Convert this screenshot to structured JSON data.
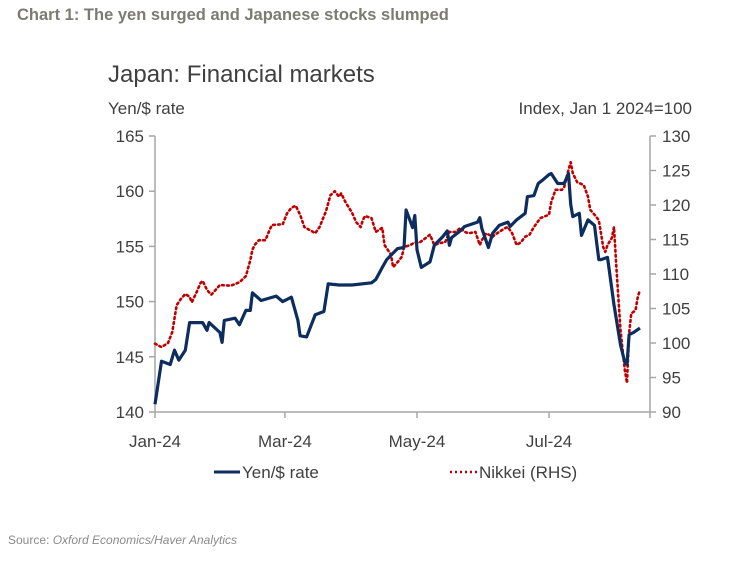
{
  "header": {
    "title": "Chart 1: The yen surged and Japanese stocks slumped"
  },
  "source": {
    "label": "Source:",
    "text": "Oxford Economics/Haver Analytics"
  },
  "chart_data": {
    "type": "line",
    "title": "Japan: Financial markets",
    "ylabel": "Yen/$ rate",
    "y2label": "Index, Jan 1 2024=100",
    "xlim": [
      "2024-01-01",
      "2024-08-31"
    ],
    "ylim": [
      140,
      165
    ],
    "y2lim": [
      90,
      130
    ],
    "x_ticks": [
      "Jan-24",
      "Mar-24",
      "May-24",
      "Jul-24"
    ],
    "x_tick_dates": [
      "2024-01-01",
      "2024-03-01",
      "2024-05-01",
      "2024-07-01"
    ],
    "y_ticks": [
      140,
      145,
      150,
      155,
      160,
      165
    ],
    "y2_ticks": [
      90,
      95,
      100,
      105,
      110,
      115,
      120,
      125,
      130
    ],
    "grid": false,
    "legend": "bottom",
    "series": [
      {
        "name": "Yen/$ rate",
        "axis": "left",
        "color": "#0d2d5e",
        "style": "solid",
        "points": [
          [
            "2024-01-01",
            140.7
          ],
          [
            "2024-01-04",
            144.6
          ],
          [
            "2024-01-08",
            144.3
          ],
          [
            "2024-01-10",
            145.6
          ],
          [
            "2024-01-12",
            144.7
          ],
          [
            "2024-01-15",
            145.6
          ],
          [
            "2024-01-17",
            148.1
          ],
          [
            "2024-01-23",
            148.1
          ],
          [
            "2024-01-25",
            147.4
          ],
          [
            "2024-01-26",
            148.1
          ],
          [
            "2024-01-31",
            147.2
          ],
          [
            "2024-02-01",
            146.3
          ],
          [
            "2024-02-02",
            148.3
          ],
          [
            "2024-02-07",
            148.5
          ],
          [
            "2024-02-09",
            147.9
          ],
          [
            "2024-02-12",
            149.2
          ],
          [
            "2024-02-14",
            149.2
          ],
          [
            "2024-02-15",
            150.8
          ],
          [
            "2024-02-19",
            150.1
          ],
          [
            "2024-02-26",
            150.5
          ],
          [
            "2024-02-29",
            150.0
          ],
          [
            "2024-03-04",
            150.4
          ],
          [
            "2024-03-07",
            148.3
          ],
          [
            "2024-03-08",
            146.9
          ],
          [
            "2024-03-11",
            146.8
          ],
          [
            "2024-03-13",
            147.8
          ],
          [
            "2024-03-15",
            148.8
          ],
          [
            "2024-03-19",
            149.1
          ],
          [
            "2024-03-21",
            151.6
          ],
          [
            "2024-03-26",
            151.5
          ],
          [
            "2024-04-01",
            151.5
          ],
          [
            "2024-04-10",
            151.7
          ],
          [
            "2024-04-12",
            152.0
          ],
          [
            "2024-04-15",
            153.1
          ],
          [
            "2024-04-17",
            153.8
          ],
          [
            "2024-04-22",
            154.8
          ],
          [
            "2024-04-25",
            154.9
          ],
          [
            "2024-04-26",
            158.3
          ],
          [
            "2024-04-29",
            156.7
          ],
          [
            "2024-04-30",
            157.8
          ],
          [
            "2024-05-01",
            154.7
          ],
          [
            "2024-05-03",
            153.1
          ],
          [
            "2024-05-07",
            153.6
          ],
          [
            "2024-05-09",
            155.1
          ],
          [
            "2024-05-13",
            155.9
          ],
          [
            "2024-05-15",
            156.4
          ],
          [
            "2024-05-16",
            155.1
          ],
          [
            "2024-05-17",
            155.8
          ],
          [
            "2024-05-21",
            156.4
          ],
          [
            "2024-05-23",
            156.8
          ],
          [
            "2024-05-29",
            157.2
          ],
          [
            "2024-05-30",
            157.6
          ],
          [
            "2024-05-31",
            156.6
          ],
          [
            "2024-06-03",
            154.9
          ],
          [
            "2024-06-05",
            156.2
          ],
          [
            "2024-06-08",
            156.9
          ],
          [
            "2024-06-12",
            157.2
          ],
          [
            "2024-06-13",
            156.8
          ],
          [
            "2024-06-16",
            157.4
          ],
          [
            "2024-06-20",
            158.0
          ],
          [
            "2024-06-21",
            159.5
          ],
          [
            "2024-06-24",
            159.6
          ],
          [
            "2024-06-26",
            160.7
          ],
          [
            "2024-06-28",
            161.0
          ],
          [
            "2024-07-01",
            161.5
          ],
          [
            "2024-07-02",
            161.6
          ],
          [
            "2024-07-05",
            160.7
          ],
          [
            "2024-07-08",
            160.7
          ],
          [
            "2024-07-10",
            161.6
          ],
          [
            "2024-07-11",
            158.8
          ],
          [
            "2024-07-12",
            157.7
          ],
          [
            "2024-07-15",
            158.0
          ],
          [
            "2024-07-16",
            156.0
          ],
          [
            "2024-07-19",
            157.4
          ],
          [
            "2024-07-22",
            156.9
          ],
          [
            "2024-07-24",
            153.8
          ],
          [
            "2024-07-25",
            153.8
          ],
          [
            "2024-07-28",
            154.0
          ],
          [
            "2024-07-31",
            149.7
          ],
          [
            "2024-08-03",
            146.1
          ],
          [
            "2024-08-05",
            144.5
          ],
          [
            "2024-08-06",
            144.3
          ],
          [
            "2024-08-07",
            147.0
          ],
          [
            "2024-08-09",
            147.2
          ],
          [
            "2024-08-12",
            147.6
          ]
        ]
      },
      {
        "name": "Nikkei (RHS)",
        "axis": "right",
        "color": "#c00000",
        "style": "dotted",
        "points": [
          [
            "2024-01-01",
            99.9
          ],
          [
            "2024-01-04",
            99.4
          ],
          [
            "2024-01-07",
            100.0
          ],
          [
            "2024-01-09",
            101.6
          ],
          [
            "2024-01-10",
            103.6
          ],
          [
            "2024-01-11",
            105.5
          ],
          [
            "2024-01-13",
            106.4
          ],
          [
            "2024-01-15",
            107.1
          ],
          [
            "2024-01-17",
            106.7
          ],
          [
            "2024-01-18",
            105.9
          ],
          [
            "2024-01-20",
            107.2
          ],
          [
            "2024-01-22",
            108.7
          ],
          [
            "2024-01-23",
            109.0
          ],
          [
            "2024-01-25",
            107.7
          ],
          [
            "2024-01-27",
            107.0
          ],
          [
            "2024-01-29",
            107.7
          ],
          [
            "2024-01-31",
            108.4
          ],
          [
            "2024-02-05",
            108.3
          ],
          [
            "2024-02-09",
            108.8
          ],
          [
            "2024-02-12",
            109.7
          ],
          [
            "2024-02-14",
            112.0
          ],
          [
            "2024-02-15",
            113.5
          ],
          [
            "2024-02-16",
            114.2
          ],
          [
            "2024-02-18",
            114.9
          ],
          [
            "2024-02-21",
            114.9
          ],
          [
            "2024-02-23",
            116.4
          ],
          [
            "2024-02-24",
            117.1
          ],
          [
            "2024-02-29",
            117.2
          ],
          [
            "2024-03-02",
            118.8
          ],
          [
            "2024-03-04",
            119.6
          ],
          [
            "2024-03-06",
            119.9
          ],
          [
            "2024-03-08",
            118.6
          ],
          [
            "2024-03-10",
            116.8
          ],
          [
            "2024-03-14",
            116.1
          ],
          [
            "2024-03-15",
            115.9
          ],
          [
            "2024-03-17",
            116.8
          ],
          [
            "2024-03-20",
            119.1
          ],
          [
            "2024-03-22",
            121.4
          ],
          [
            "2024-03-24",
            122.0
          ],
          [
            "2024-03-26",
            121.2
          ],
          [
            "2024-03-27",
            121.7
          ],
          [
            "2024-03-29",
            120.4
          ],
          [
            "2024-04-01",
            118.9
          ],
          [
            "2024-04-03",
            117.5
          ],
          [
            "2024-04-05",
            116.8
          ],
          [
            "2024-04-06",
            117.8
          ],
          [
            "2024-04-07",
            118.4
          ],
          [
            "2024-04-10",
            118.1
          ],
          [
            "2024-04-12",
            116.1
          ],
          [
            "2024-04-15",
            116.7
          ],
          [
            "2024-04-16",
            114.2
          ],
          [
            "2024-04-19",
            112.8
          ],
          [
            "2024-04-20",
            111.0
          ],
          [
            "2024-04-22",
            111.7
          ],
          [
            "2024-04-24",
            112.5
          ],
          [
            "2024-04-25",
            113.9
          ],
          [
            "2024-04-28",
            114.2
          ],
          [
            "2024-04-30",
            114.6
          ],
          [
            "2024-05-02",
            114.5
          ],
          [
            "2024-05-05",
            115.2
          ],
          [
            "2024-05-07",
            115.7
          ],
          [
            "2024-05-09",
            114.2
          ],
          [
            "2024-05-12",
            114.5
          ],
          [
            "2024-05-14",
            114.6
          ],
          [
            "2024-05-16",
            116.1
          ],
          [
            "2024-05-19",
            116.1
          ],
          [
            "2024-05-21",
            116.7
          ],
          [
            "2024-05-23",
            116.1
          ],
          [
            "2024-05-25",
            115.9
          ],
          [
            "2024-05-28",
            116.1
          ],
          [
            "2024-05-30",
            114.2
          ],
          [
            "2024-05-31",
            114.9
          ],
          [
            "2024-06-02",
            115.9
          ],
          [
            "2024-06-05",
            115.4
          ],
          [
            "2024-06-06",
            115.7
          ],
          [
            "2024-06-08",
            116.1
          ],
          [
            "2024-06-11",
            116.7
          ],
          [
            "2024-06-12",
            116.8
          ],
          [
            "2024-06-14",
            115.9
          ],
          [
            "2024-06-16",
            114.2
          ],
          [
            "2024-06-18",
            114.6
          ],
          [
            "2024-06-20",
            115.4
          ],
          [
            "2024-06-22",
            115.7
          ],
          [
            "2024-06-24",
            116.8
          ],
          [
            "2024-06-27",
            118.1
          ],
          [
            "2024-07-01",
            118.6
          ],
          [
            "2024-07-02",
            120.4
          ],
          [
            "2024-07-04",
            122.2
          ],
          [
            "2024-07-07",
            122.2
          ],
          [
            "2024-07-08",
            122.6
          ],
          [
            "2024-07-10",
            125.1
          ],
          [
            "2024-07-11",
            126.2
          ],
          [
            "2024-07-12",
            124.6
          ],
          [
            "2024-07-14",
            123.3
          ],
          [
            "2024-07-17",
            122.9
          ],
          [
            "2024-07-19",
            121.2
          ],
          [
            "2024-07-20",
            119.3
          ],
          [
            "2024-07-22",
            118.6
          ],
          [
            "2024-07-24",
            117.8
          ],
          [
            "2024-07-25",
            115.9
          ],
          [
            "2024-07-26",
            113.9
          ],
          [
            "2024-07-27",
            113.2
          ],
          [
            "2024-07-28",
            114.2
          ],
          [
            "2024-07-30",
            115.2
          ],
          [
            "2024-07-31",
            116.8
          ],
          [
            "2024-08-01",
            111.6
          ],
          [
            "2024-08-02",
            106.7
          ],
          [
            "2024-08-03",
            101.9
          ],
          [
            "2024-08-04",
            99.0
          ],
          [
            "2024-08-05",
            96.1
          ],
          [
            "2024-08-06",
            94.2
          ],
          [
            "2024-08-07",
            101.4
          ],
          [
            "2024-08-08",
            104.3
          ],
          [
            "2024-08-09",
            104.5
          ],
          [
            "2024-08-10",
            104.8
          ],
          [
            "2024-08-11",
            106.7
          ],
          [
            "2024-08-12",
            107.7
          ]
        ]
      }
    ]
  }
}
